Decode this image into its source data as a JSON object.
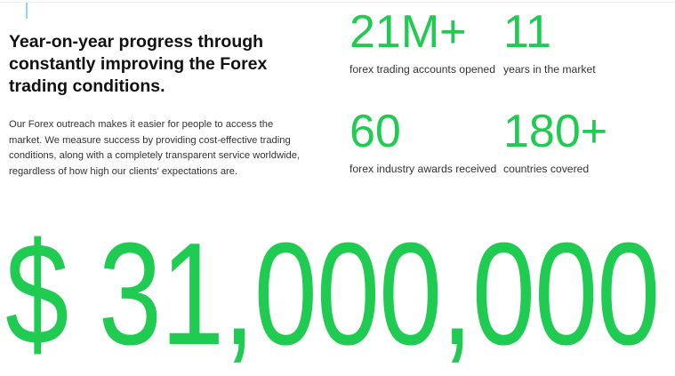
{
  "colors": {
    "accent": "#1fcb50"
  },
  "heading": "Year-on-year progress through constantly improving the Forex trading conditions.",
  "description": "Our Forex outreach makes it easier for people to access the market. We measure success by providing cost-effective trading conditions, along with a completely transparent service worldwide, regardless of how high our clients' expectations are.",
  "stats": [
    {
      "value": "21M+",
      "label": "forex trading accounts opened"
    },
    {
      "value": "11",
      "label": "years in the market"
    },
    {
      "value": "60",
      "label": "forex industry awards received"
    },
    {
      "value": "180+",
      "label": "countries covered"
    }
  ],
  "big_amount": "$ 31,000,000"
}
